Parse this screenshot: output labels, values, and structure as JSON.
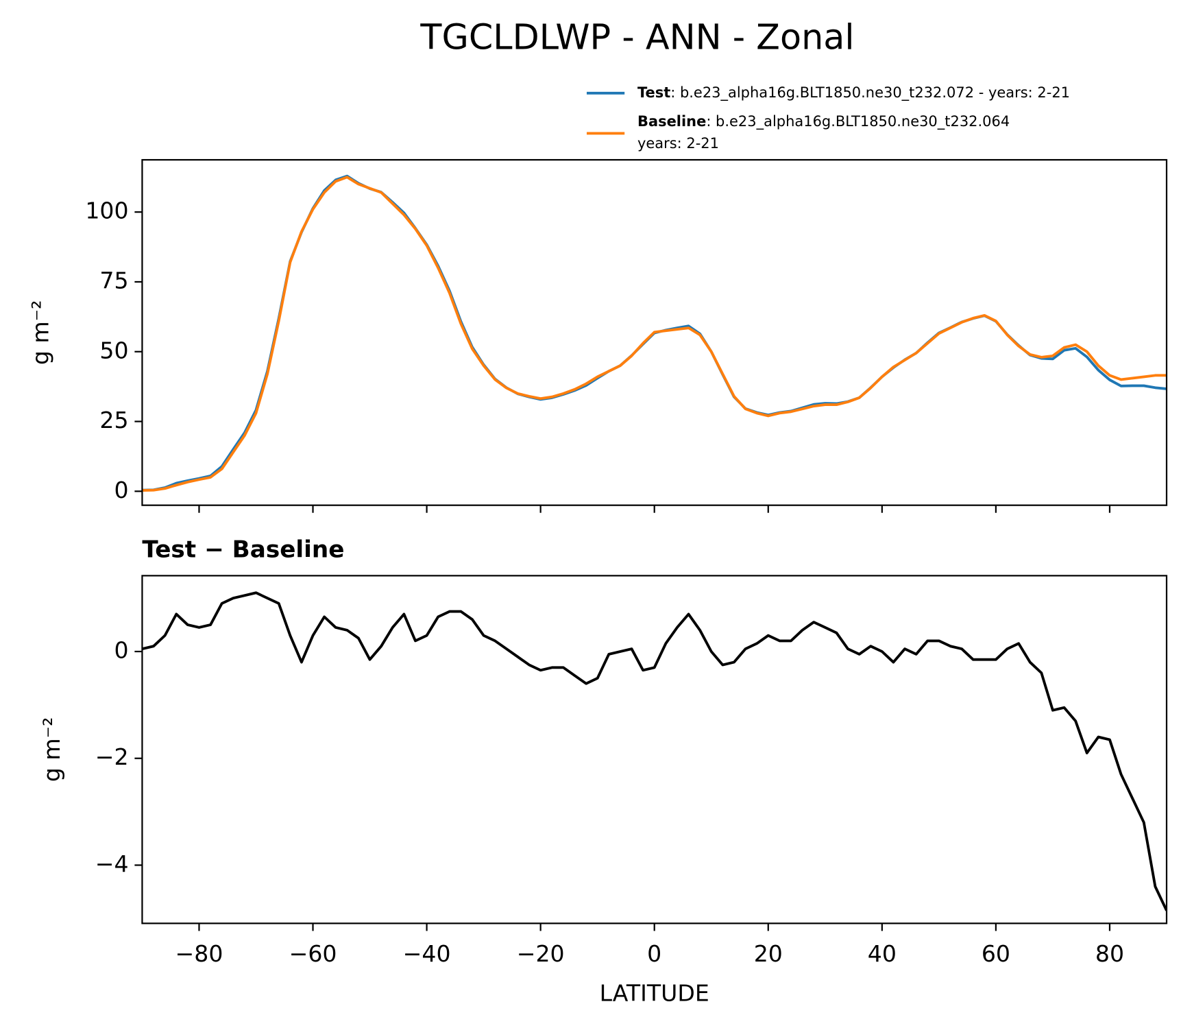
{
  "chart_data": [
    {
      "type": "line",
      "title": "TGCLDLWP - ANN - Zonal",
      "ylabel": "g m⁻²",
      "xlim": [
        -90,
        90
      ],
      "xticks": [
        -80,
        -60,
        -40,
        -20,
        0,
        20,
        40,
        60,
        80
      ],
      "ylim": [
        -5,
        118.7
      ],
      "yticks": [
        0,
        25,
        50,
        75,
        100
      ],
      "x": [
        -90,
        -88,
        -86,
        -84,
        -82,
        -80,
        -78,
        -76,
        -74,
        -72,
        -70,
        -68,
        -66,
        -64,
        -62,
        -60,
        -58,
        -56,
        -54,
        -52,
        -50,
        -48,
        -46,
        -44,
        -42,
        -40,
        -38,
        -36,
        -34,
        -32,
        -30,
        -28,
        -26,
        -24,
        -22,
        -20,
        -18,
        -16,
        -14,
        -12,
        -10,
        -8,
        -6,
        -4,
        -2,
        0,
        2,
        4,
        6,
        8,
        10,
        12,
        14,
        16,
        18,
        20,
        22,
        24,
        26,
        28,
        30,
        32,
        34,
        36,
        38,
        40,
        42,
        44,
        46,
        48,
        50,
        52,
        54,
        56,
        58,
        60,
        62,
        64,
        66,
        68,
        70,
        72,
        74,
        76,
        78,
        80,
        82,
        84,
        86,
        88,
        90
      ],
      "series": [
        {
          "name": "Test",
          "label_lines": [
            ": b.e23_alpha16g.BLT1850.ne30_t232.072 - years: 2-21"
          ],
          "color": "#1f77b4",
          "values": [
            0.4,
            0.5,
            1.3,
            2.9,
            3.8,
            4.6,
            5.5,
            8.9,
            15.0,
            21.0,
            29.1,
            43.0,
            61.9,
            82.3,
            92.8,
            101.3,
            107.7,
            111.5,
            112.9,
            110.3,
            108.4,
            107.1,
            103.5,
            99.7,
            94.2,
            88.3,
            80.7,
            71.8,
            60.8,
            51.6,
            45.3,
            40.2,
            37.1,
            34.9,
            33.8,
            32.9,
            33.5,
            34.7,
            36.1,
            37.9,
            40.5,
            43.0,
            45.0,
            48.6,
            52.7,
            56.7,
            57.7,
            58.5,
            59.2,
            56.4,
            50.0,
            41.8,
            33.8,
            29.6,
            28.2,
            27.3,
            28.2,
            28.7,
            29.9,
            31.1,
            31.5,
            31.4,
            32.1,
            33.5,
            37.1,
            41.0,
            44.3,
            47.1,
            49.5,
            53.2,
            56.7,
            58.6,
            60.6,
            61.9,
            62.9,
            60.9,
            56.1,
            52.2,
            48.8,
            47.6,
            47.4,
            50.5,
            51.2,
            48.1,
            43.4,
            39.9,
            37.7,
            37.8,
            37.8,
            37.1,
            36.7
          ]
        },
        {
          "name": "Baseline",
          "label_lines": [
            ": b.e23_alpha16g.BLT1850.ne30_t232.064",
            "years: 2-21"
          ],
          "color": "#ff7f0e",
          "values": [
            0.3,
            0.4,
            1.0,
            2.2,
            3.3,
            4.2,
            5.0,
            8.0,
            14.0,
            20.0,
            28.0,
            42.0,
            61.0,
            82.0,
            93.0,
            101.0,
            107.0,
            111.0,
            112.5,
            110.0,
            108.5,
            107.0,
            103.0,
            99.0,
            94.0,
            88.0,
            80.0,
            71.0,
            60.0,
            51.0,
            45.0,
            40.0,
            37.0,
            35.0,
            34.0,
            33.2,
            33.8,
            35.0,
            36.5,
            38.5,
            41.0,
            43.0,
            45.0,
            48.5,
            53.0,
            57.0,
            57.5,
            58.0,
            58.5,
            56.0,
            50.0,
            42.0,
            34.0,
            29.5,
            28.0,
            27.0,
            28.0,
            28.5,
            29.5,
            30.5,
            31.0,
            31.0,
            32.0,
            33.5,
            37.0,
            41.0,
            44.5,
            47.0,
            49.5,
            53.0,
            56.5,
            58.5,
            60.5,
            62.0,
            63.0,
            61.0,
            56.0,
            52.0,
            49.0,
            48.0,
            48.5,
            51.5,
            52.5,
            50.0,
            45.0,
            41.5,
            40.0,
            40.5,
            41.0,
            41.5,
            41.5
          ]
        }
      ]
    },
    {
      "type": "line",
      "title": "Test − Baseline",
      "xlabel": "LATITUDE",
      "ylabel": "g m⁻²",
      "xlim": [
        -90,
        90
      ],
      "xticks": [
        {
          "value": -80,
          "label": "−80"
        },
        {
          "value": -60,
          "label": "−60"
        },
        {
          "value": -40,
          "label": "−40"
        },
        {
          "value": -20,
          "label": "−20"
        },
        0,
        20,
        40,
        60,
        80
      ],
      "ylim": [
        -5.09,
        1.42
      ],
      "yticks": [
        {
          "value": -4,
          "label": "−4"
        },
        {
          "value": -2,
          "label": "−2"
        },
        0
      ],
      "x": [
        -90,
        -88,
        -86,
        -84,
        -82,
        -80,
        -78,
        -76,
        -74,
        -72,
        -70,
        -68,
        -66,
        -64,
        -62,
        -60,
        -58,
        -56,
        -54,
        -52,
        -50,
        -48,
        -46,
        -44,
        -42,
        -40,
        -38,
        -36,
        -34,
        -32,
        -30,
        -28,
        -26,
        -24,
        -22,
        -20,
        -18,
        -16,
        -14,
        -12,
        -10,
        -8,
        -6,
        -4,
        -2,
        0,
        2,
        4,
        6,
        8,
        10,
        12,
        14,
        16,
        18,
        20,
        22,
        24,
        26,
        28,
        30,
        32,
        34,
        36,
        38,
        40,
        42,
        44,
        46,
        48,
        50,
        52,
        54,
        56,
        58,
        60,
        62,
        64,
        66,
        68,
        70,
        72,
        74,
        76,
        78,
        80,
        82,
        84,
        86,
        88,
        90
      ],
      "series": [
        {
          "color": "#000000",
          "values": [
            0.05,
            0.1,
            0.3,
            0.7,
            0.5,
            0.45,
            0.5,
            0.9,
            1.0,
            1.05,
            1.1,
            1.0,
            0.9,
            0.3,
            -0.2,
            0.3,
            0.65,
            0.45,
            0.4,
            0.25,
            -0.15,
            0.1,
            0.45,
            0.7,
            0.2,
            0.3,
            0.65,
            0.75,
            0.75,
            0.6,
            0.3,
            0.2,
            0.05,
            -0.1,
            -0.25,
            -0.35,
            -0.3,
            -0.3,
            -0.45,
            -0.6,
            -0.5,
            -0.05,
            0.0,
            0.05,
            -0.35,
            -0.3,
            0.15,
            0.45,
            0.7,
            0.4,
            0.0,
            -0.25,
            -0.2,
            0.05,
            0.15,
            0.3,
            0.2,
            0.2,
            0.4,
            0.55,
            0.45,
            0.35,
            0.05,
            -0.05,
            0.1,
            0.0,
            -0.2,
            0.05,
            -0.05,
            0.2,
            0.2,
            0.1,
            0.05,
            -0.15,
            -0.15,
            -0.15,
            0.05,
            0.15,
            -0.2,
            -0.4,
            -1.1,
            -1.05,
            -1.3,
            -1.9,
            -1.6,
            -1.65,
            -2.3,
            -2.75,
            -3.2,
            -4.4,
            -4.85
          ]
        }
      ]
    }
  ]
}
